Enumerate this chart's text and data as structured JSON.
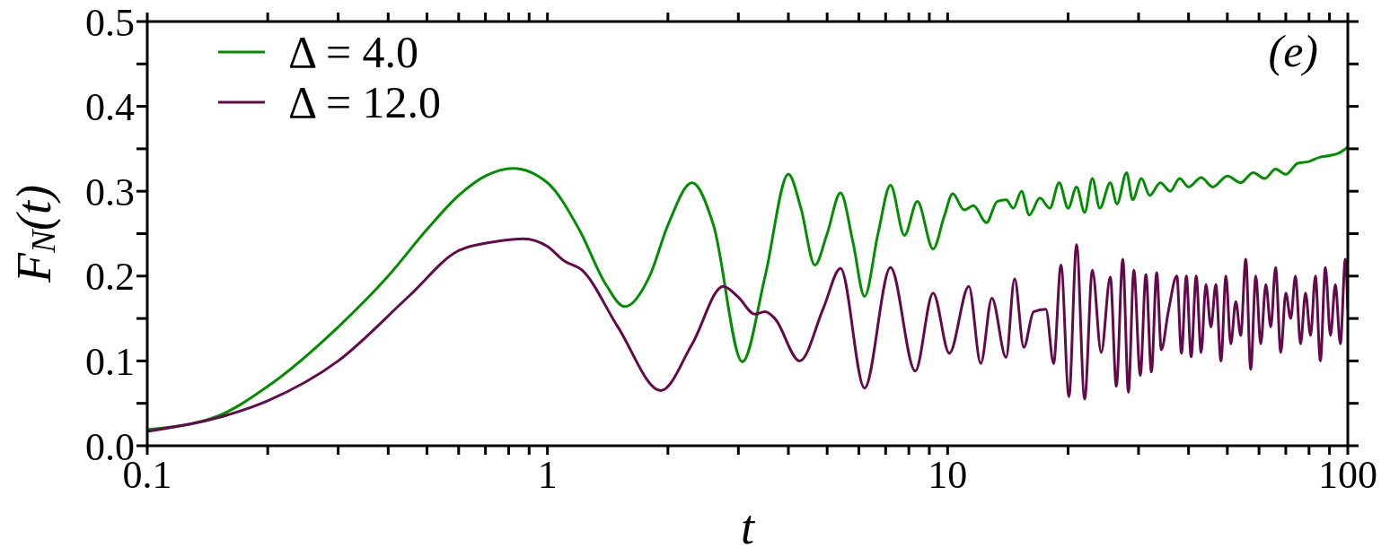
{
  "chart_data": {
    "type": "line",
    "xlabel": "t",
    "ylabel": "F$_{N}$(t)",
    "annotations": [
      "(e)"
    ],
    "log": "x",
    "legend": "top left",
    "marker": "none",
    "line_style": "solid",
    "xlim": [
      0.1,
      100
    ],
    "ylim": [
      0,
      0.5
    ],
    "xticks": [
      0.1,
      {
        "value": 0.2,
        "label": null
      },
      {
        "value": 0.3,
        "label": null
      },
      {
        "value": 0.4,
        "label": null
      },
      {
        "value": 0.5,
        "label": null
      },
      {
        "value": 0.6,
        "label": null
      },
      {
        "value": 0.7,
        "label": null
      },
      {
        "value": 0.8,
        "label": null
      },
      {
        "value": 0.9,
        "label": null
      },
      1,
      {
        "value": 2,
        "label": null
      },
      {
        "value": 3,
        "label": null
      },
      {
        "value": 4,
        "label": null
      },
      {
        "value": 5,
        "label": null
      },
      {
        "value": 6,
        "label": null
      },
      {
        "value": 7,
        "label": null
      },
      {
        "value": 8,
        "label": null
      },
      {
        "value": 9,
        "label": null
      },
      10,
      {
        "value": 20,
        "label": null
      },
      {
        "value": 30,
        "label": null
      },
      {
        "value": 40,
        "label": null
      },
      {
        "value": 50,
        "label": null
      },
      {
        "value": 60,
        "label": null
      },
      {
        "value": 70,
        "label": null
      },
      {
        "value": 80,
        "label": null
      },
      {
        "value": 90,
        "label": null
      },
      100
    ],
    "yticks": [
      {
        "value": 0,
        "label": "0.0"
      },
      {
        "value": 0.05,
        "label": null
      },
      0.1,
      {
        "value": 0.15,
        "label": null
      },
      0.2,
      {
        "value": 0.25,
        "label": null
      },
      0.3,
      {
        "value": 0.35,
        "label": null
      },
      0.4,
      {
        "value": 0.45,
        "label": null
      },
      0.5
    ],
    "series": [
      {
        "name": "Δ = 4.0",
        "color": "#008f00",
        "x": [
          0.1,
          0.15,
          0.2,
          0.3,
          0.4,
          0.5,
          0.6,
          0.7,
          0.82,
          1.0,
          1.2,
          1.4,
          1.56,
          1.8,
          2.0,
          2.3,
          2.6,
          3.07,
          3.5,
          4.0,
          4.3,
          4.66,
          5.0,
          5.4,
          5.8,
          6.2,
          6.7,
          7.2,
          7.8,
          8.4,
          9.2,
          9.8,
          10.3,
          11,
          11.6,
          12.5,
          13.3,
          14,
          14.6,
          15.3,
          16,
          17,
          18,
          19,
          20,
          21,
          22,
          23,
          24,
          25.5,
          26.5,
          28,
          29,
          30.5,
          32,
          34,
          36,
          38,
          40,
          43,
          46,
          50,
          54,
          58,
          62,
          66,
          70,
          75,
          80,
          85,
          90,
          95,
          100
        ],
        "values": [
          0.019,
          0.035,
          0.07,
          0.14,
          0.2,
          0.255,
          0.295,
          0.318,
          0.327,
          0.31,
          0.255,
          0.19,
          0.164,
          0.2,
          0.26,
          0.31,
          0.26,
          0.099,
          0.2,
          0.32,
          0.28,
          0.213,
          0.25,
          0.298,
          0.24,
          0.176,
          0.25,
          0.307,
          0.248,
          0.288,
          0.232,
          0.27,
          0.297,
          0.278,
          0.283,
          0.263,
          0.288,
          0.29,
          0.28,
          0.3,
          0.272,
          0.292,
          0.28,
          0.31,
          0.28,
          0.305,
          0.275,
          0.315,
          0.28,
          0.31,
          0.285,
          0.322,
          0.29,
          0.315,
          0.295,
          0.31,
          0.3,
          0.315,
          0.305,
          0.316,
          0.305,
          0.318,
          0.31,
          0.322,
          0.315,
          0.326,
          0.32,
          0.333,
          0.335,
          0.34,
          0.342,
          0.345,
          0.352
        ]
      },
      {
        "name": "Δ = 12.0",
        "color": "#640a4a",
        "x": [
          0.1,
          0.15,
          0.2,
          0.3,
          0.45,
          0.6,
          0.75,
          0.87,
          1.0,
          1.1,
          1.22,
          1.5,
          1.92,
          2.3,
          2.75,
          3.0,
          3.3,
          3.5,
          3.7,
          4.27,
          4.9,
          5.4,
          6.2,
          7.2,
          8.3,
          9.2,
          10.1,
          11.3,
          12.1,
          12.9,
          14,
          14.7,
          15.5,
          16.4,
          17.6,
          18.4,
          19.2,
          20.1,
          21,
          22,
          23,
          24.2,
          25.5,
          26.4,
          27.4,
          28.3,
          29.2,
          30.3,
          31.3,
          32.3,
          33.3,
          34.2,
          35.6,
          37.4,
          38.4,
          39.5,
          40.6,
          41.8,
          43,
          44.2,
          45.5,
          46.8,
          48.2,
          49.6,
          51,
          52.5,
          54,
          55.6,
          57.2,
          58.9,
          60.6,
          62.4,
          64.2,
          66,
          68,
          70,
          72,
          74,
          76.2,
          78.4,
          80.7,
          83,
          85.4,
          87.9,
          90.5,
          93.1,
          95.8,
          98.6,
          100
        ],
        "values": [
          0.017,
          0.033,
          0.053,
          0.1,
          0.176,
          0.23,
          0.241,
          0.244,
          0.235,
          0.218,
          0.207,
          0.14,
          0.065,
          0.12,
          0.188,
          0.175,
          0.155,
          0.158,
          0.15,
          0.1,
          0.163,
          0.209,
          0.068,
          0.21,
          0.088,
          0.18,
          0.109,
          0.188,
          0.097,
          0.174,
          0.104,
          0.197,
          0.116,
          0.158,
          0.161,
          0.097,
          0.213,
          0.058,
          0.237,
          0.055,
          0.207,
          0.11,
          0.199,
          0.07,
          0.22,
          0.063,
          0.207,
          0.083,
          0.202,
          0.087,
          0.204,
          0.113,
          0.158,
          0.2,
          0.109,
          0.2,
          0.105,
          0.2,
          0.11,
          0.19,
          0.14,
          0.19,
          0.1,
          0.2,
          0.12,
          0.17,
          0.13,
          0.22,
          0.09,
          0.2,
          0.12,
          0.19,
          0.14,
          0.21,
          0.11,
          0.18,
          0.15,
          0.2,
          0.12,
          0.18,
          0.13,
          0.2,
          0.1,
          0.21,
          0.13,
          0.19,
          0.12,
          0.22,
          0.16
        ]
      }
    ]
  }
}
